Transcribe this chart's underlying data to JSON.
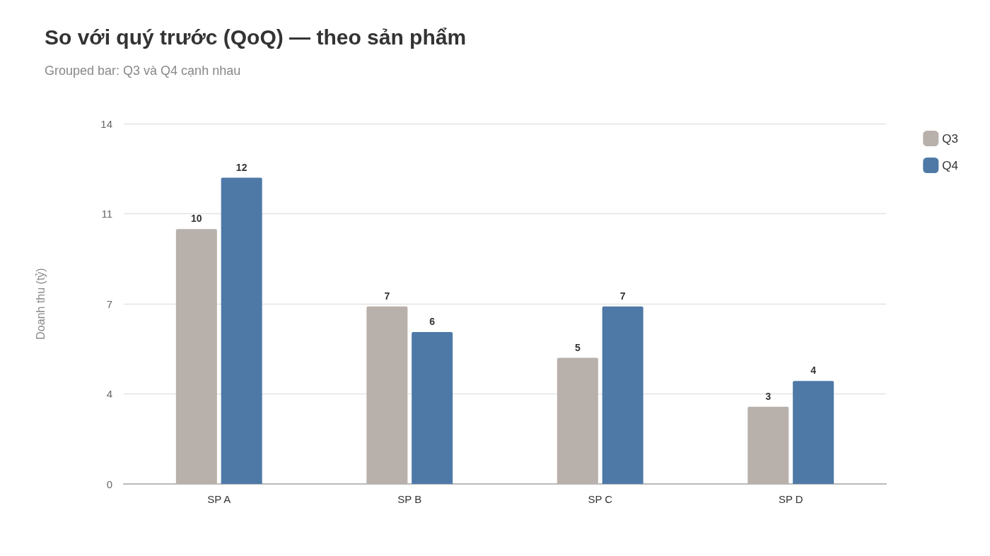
{
  "chart_data": {
    "type": "bar",
    "title": "So với quý trước (QoQ) — theo sản phẩm",
    "subtitle": "Grouped bar: Q3 và Q4 cạnh nhau",
    "ylabel": "Doanh thu (tỷ)",
    "categories": [
      "SP A",
      "SP B",
      "SP C",
      "SP D"
    ],
    "series": [
      {
        "name": "Q3",
        "color": "#b8b0ab",
        "values": [
          9.9,
          6.9,
          4.9,
          3.0
        ],
        "value_labels": [
          "10",
          "7",
          "5",
          "3"
        ]
      },
      {
        "name": "Q4",
        "color": "#4e79a7",
        "values": [
          11.9,
          5.9,
          6.9,
          4.0
        ],
        "value_labels": [
          "12",
          "6",
          "7",
          "4"
        ]
      }
    ],
    "ylim": [
      0,
      14
    ],
    "yticks": [
      0,
      {
        "value": 3.5,
        "label": "4"
      },
      7,
      {
        "value": 10.5,
        "label": "11"
      },
      14
    ],
    "grid": "y",
    "legend": "top right"
  }
}
